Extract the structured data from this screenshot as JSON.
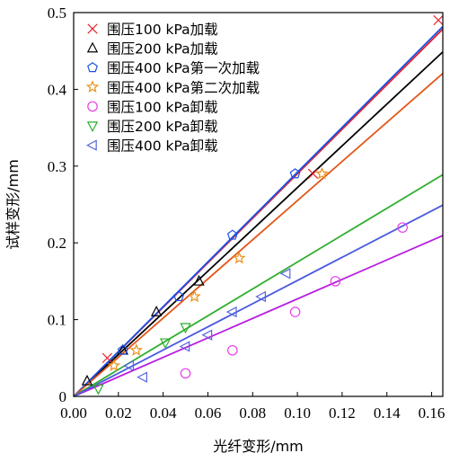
{
  "chart_data": {
    "type": "scatter",
    "title": "",
    "xlabel": "光纤变形/mm",
    "ylabel": "试样变形/mm",
    "xlim": [
      0,
      0.165
    ],
    "ylim": [
      0,
      0.5
    ],
    "xticks": [
      "0.00",
      "0.02",
      "0.04",
      "0.06",
      "0.08",
      "0.10",
      "0.12",
      "0.14",
      "0.16"
    ],
    "yticks": [
      "0",
      "0.1",
      "0.2",
      "0.3",
      "0.4",
      "0.5"
    ],
    "grid": false,
    "legend_position": "top-left",
    "series": [
      {
        "name": "围压100 kPa加载",
        "marker": "x",
        "color": "#e8212a",
        "x": [
          0.015,
          0.107,
          0.163
        ],
        "y": [
          0.05,
          0.29,
          0.49
        ],
        "fit_slope": 2.9,
        "fit_color": "#e8212a"
      },
      {
        "name": "围压200 kPa加载",
        "marker": "triangle-up",
        "color": "#000000",
        "x": [
          0.006,
          0.022,
          0.037,
          0.056
        ],
        "y": [
          0.02,
          0.06,
          0.11,
          0.15
        ],
        "fit_slope": 2.72,
        "fit_color": "#000000"
      },
      {
        "name": "围压400 kPa第一次加载",
        "marker": "pentagon",
        "color": "#1b52e6",
        "x": [
          0.022,
          0.047,
          0.071,
          0.099
        ],
        "y": [
          0.06,
          0.13,
          0.21,
          0.29
        ],
        "fit_slope": 2.92,
        "fit_color": "#1b52e6"
      },
      {
        "name": "围压400 kPa第二次加载",
        "marker": "star",
        "color": "#e8901a",
        "x": [
          0.018,
          0.028,
          0.054,
          0.074,
          0.111
        ],
        "y": [
          0.04,
          0.06,
          0.13,
          0.18,
          0.29
        ],
        "fit_slope": 2.55,
        "fit_color": "#e2571a"
      },
      {
        "name": "围压100 kPa卸载",
        "marker": "circle",
        "color": "#e83ee8",
        "x": [
          0.05,
          0.071,
          0.099,
          0.117,
          0.147
        ],
        "y": [
          0.03,
          0.06,
          0.11,
          0.15,
          0.22
        ],
        "fit_slope": 1.27,
        "fit_color": "#b81ee0"
      },
      {
        "name": "围压200 kPa卸载",
        "marker": "triangle-down",
        "color": "#2eae2e",
        "x": [
          0.011,
          0.041,
          0.05
        ],
        "y": [
          0.01,
          0.07,
          0.09
        ],
        "fit_slope": 1.75,
        "fit_color": "#2eae2e"
      },
      {
        "name": "围压400 kPa卸载",
        "marker": "triangle-left",
        "color": "#5566dd",
        "x": [
          0.025,
          0.031,
          0.05,
          0.06,
          0.071,
          0.084,
          0.095
        ],
        "y": [
          0.04,
          0.025,
          0.065,
          0.08,
          0.11,
          0.13,
          0.16
        ],
        "fit_slope": 1.51,
        "fit_color": "#4a5ae0"
      }
    ]
  }
}
